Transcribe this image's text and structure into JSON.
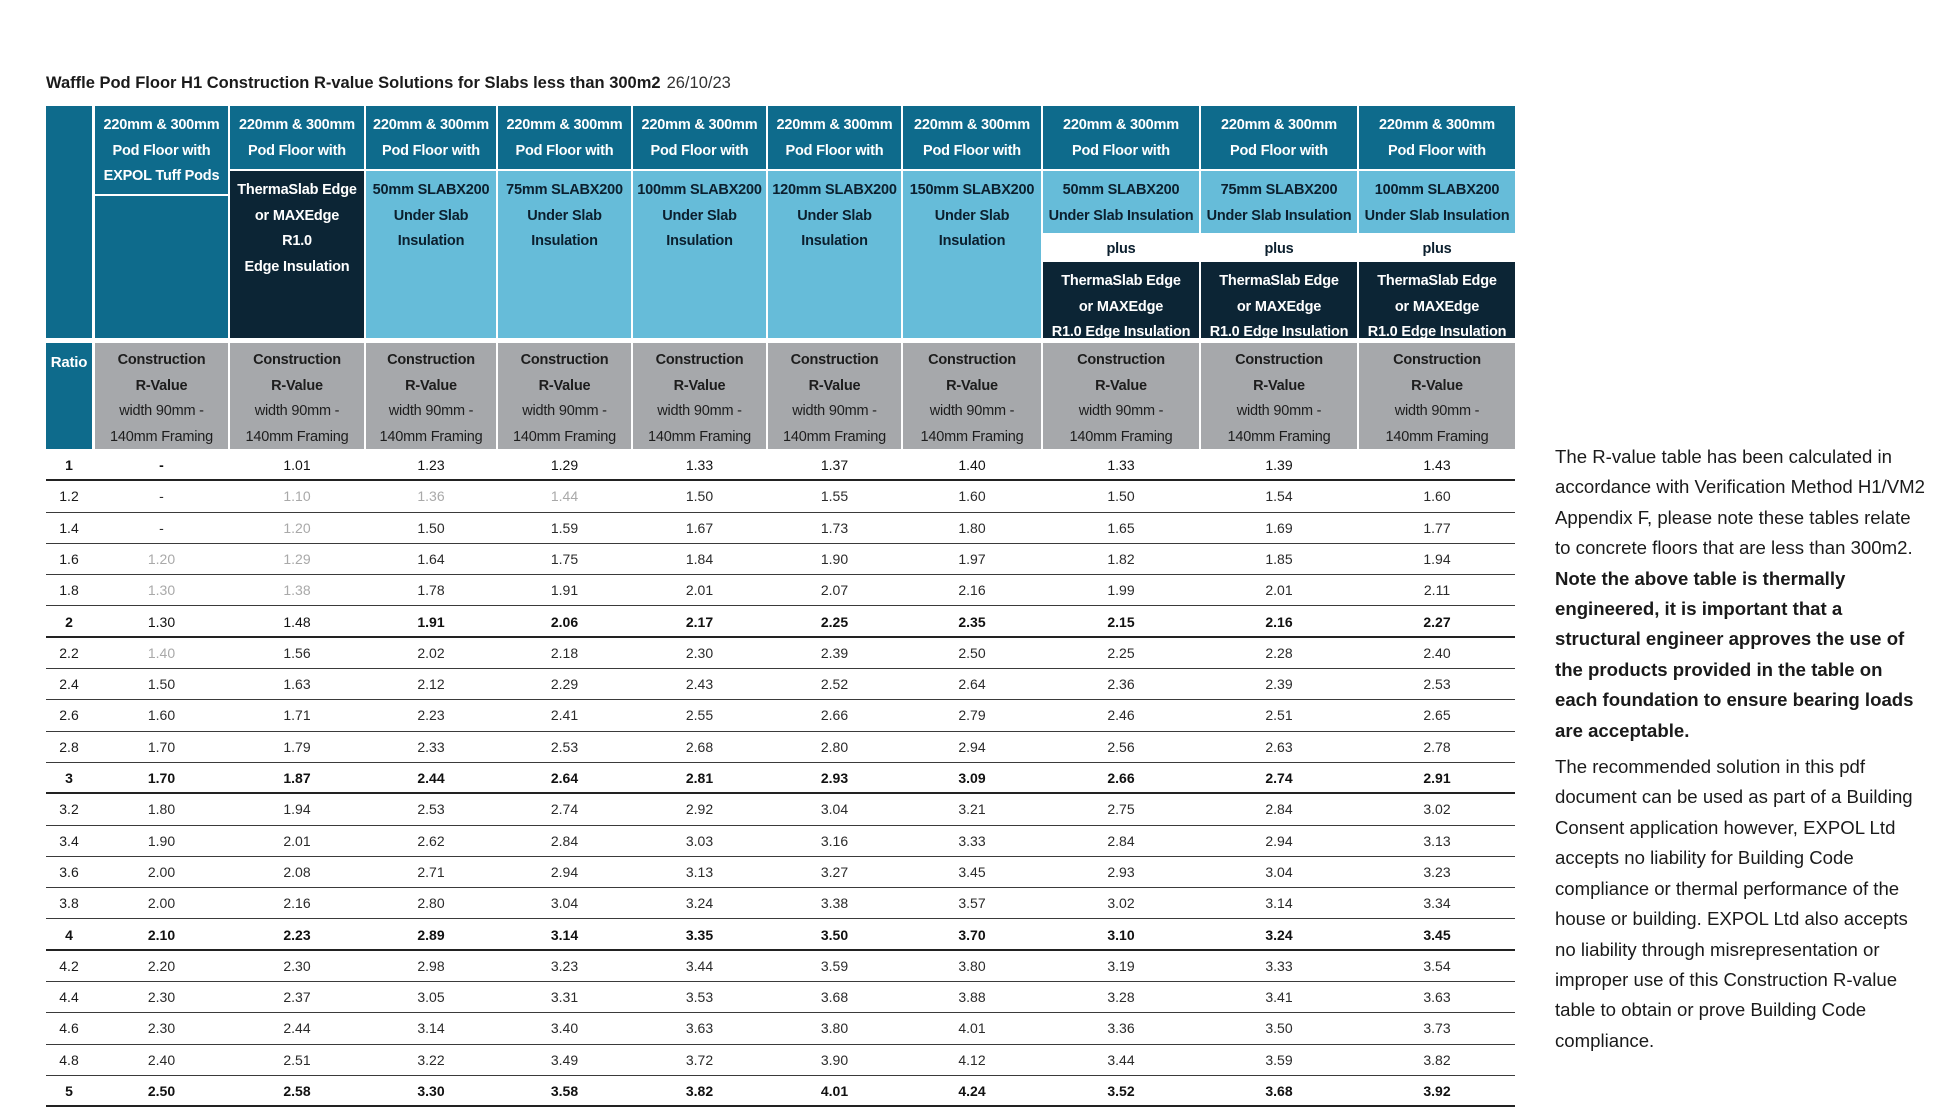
{
  "doc": {
    "title": "Waffle Pod Floor H1 Construction R-value Solutions for Slabs less than 300m2",
    "date": "26/10/23"
  },
  "table": {
    "ratio_label": "Ratio",
    "top_lines": [
      "220mm & 300mm",
      "Pod Floor with"
    ],
    "col1_extra": "EXPOL Tuff Pods",
    "thermaslab_only": [
      "ThermaSlab Edge",
      "or MAXEdge",
      "R1.0",
      "Edge Insulation"
    ],
    "underslab": [
      [
        "50mm SLABX200",
        "Under Slab",
        "Insulation"
      ],
      [
        "75mm SLABX200",
        "Under Slab",
        "Insulation"
      ],
      [
        "100mm SLABX200",
        "Under Slab",
        "Insulation"
      ],
      [
        "120mm SLABX200",
        "Under Slab",
        "Insulation"
      ],
      [
        "150mm SLABX200",
        "Under Slab",
        "Insulation"
      ]
    ],
    "combo_underslab": [
      [
        "50mm SLABX200",
        "Under Slab Insulation"
      ],
      [
        "75mm SLABX200",
        "Under Slab Insulation"
      ],
      [
        "100mm SLABX200",
        "Under Slab Insulation"
      ]
    ],
    "plus_label": "plus",
    "combo_edge": [
      "ThermaSlab Edge",
      "or MAXEdge",
      "R1.0 Edge Insulation"
    ],
    "sub_header": [
      "Construction",
      "R-Value",
      "width 90mm -",
      "140mm Framing"
    ],
    "rows": [
      {
        "ratio": "1",
        "bold": true,
        "values": [
          "-",
          "1.01",
          "1.23",
          "1.29",
          "1.33",
          "1.37",
          "1.40",
          "1.33",
          "1.39",
          "1.43"
        ],
        "faded": [
          1,
          2,
          3,
          4,
          5,
          6,
          7,
          8,
          9
        ]
      },
      {
        "ratio": "1.2",
        "bold": false,
        "values": [
          "-",
          "1.10",
          "1.36",
          "1.44",
          "1.50",
          "1.55",
          "1.60",
          "1.50",
          "1.54",
          "1.60"
        ],
        "faded": [
          1,
          2,
          3
        ]
      },
      {
        "ratio": "1.4",
        "bold": false,
        "values": [
          "-",
          "1.20",
          "1.50",
          "1.59",
          "1.67",
          "1.73",
          "1.80",
          "1.65",
          "1.69",
          "1.77"
        ],
        "faded": [
          1
        ]
      },
      {
        "ratio": "1.6",
        "bold": false,
        "values": [
          "1.20",
          "1.29",
          "1.64",
          "1.75",
          "1.84",
          "1.90",
          "1.97",
          "1.82",
          "1.85",
          "1.94"
        ],
        "faded": [
          0,
          1
        ]
      },
      {
        "ratio": "1.8",
        "bold": false,
        "values": [
          "1.30",
          "1.38",
          "1.78",
          "1.91",
          "2.01",
          "2.07",
          "2.16",
          "1.99",
          "2.01",
          "2.11"
        ],
        "faded": [
          0,
          1
        ]
      },
      {
        "ratio": "2",
        "bold": true,
        "values": [
          "1.30",
          "1.48",
          "1.91",
          "2.06",
          "2.17",
          "2.25",
          "2.35",
          "2.15",
          "2.16",
          "2.27"
        ],
        "faded": [
          0,
          1
        ]
      },
      {
        "ratio": "2.2",
        "bold": false,
        "values": [
          "1.40",
          "1.56",
          "2.02",
          "2.18",
          "2.30",
          "2.39",
          "2.50",
          "2.25",
          "2.28",
          "2.40"
        ],
        "faded": [
          0
        ]
      },
      {
        "ratio": "2.4",
        "bold": false,
        "values": [
          "1.50",
          "1.63",
          "2.12",
          "2.29",
          "2.43",
          "2.52",
          "2.64",
          "2.36",
          "2.39",
          "2.53"
        ],
        "faded": []
      },
      {
        "ratio": "2.6",
        "bold": false,
        "values": [
          "1.60",
          "1.71",
          "2.23",
          "2.41",
          "2.55",
          "2.66",
          "2.79",
          "2.46",
          "2.51",
          "2.65"
        ],
        "faded": []
      },
      {
        "ratio": "2.8",
        "bold": false,
        "values": [
          "1.70",
          "1.79",
          "2.33",
          "2.53",
          "2.68",
          "2.80",
          "2.94",
          "2.56",
          "2.63",
          "2.78"
        ],
        "faded": []
      },
      {
        "ratio": "3",
        "bold": true,
        "values": [
          "1.70",
          "1.87",
          "2.44",
          "2.64",
          "2.81",
          "2.93",
          "3.09",
          "2.66",
          "2.74",
          "2.91"
        ],
        "faded": []
      },
      {
        "ratio": "3.2",
        "bold": false,
        "values": [
          "1.80",
          "1.94",
          "2.53",
          "2.74",
          "2.92",
          "3.04",
          "3.21",
          "2.75",
          "2.84",
          "3.02"
        ],
        "faded": []
      },
      {
        "ratio": "3.4",
        "bold": false,
        "values": [
          "1.90",
          "2.01",
          "2.62",
          "2.84",
          "3.03",
          "3.16",
          "3.33",
          "2.84",
          "2.94",
          "3.13"
        ],
        "faded": []
      },
      {
        "ratio": "3.6",
        "bold": false,
        "values": [
          "2.00",
          "2.08",
          "2.71",
          "2.94",
          "3.13",
          "3.27",
          "3.45",
          "2.93",
          "3.04",
          "3.23"
        ],
        "faded": []
      },
      {
        "ratio": "3.8",
        "bold": false,
        "values": [
          "2.00",
          "2.16",
          "2.80",
          "3.04",
          "3.24",
          "3.38",
          "3.57",
          "3.02",
          "3.14",
          "3.34"
        ],
        "faded": []
      },
      {
        "ratio": "4",
        "bold": true,
        "values": [
          "2.10",
          "2.23",
          "2.89",
          "3.14",
          "3.35",
          "3.50",
          "3.70",
          "3.10",
          "3.24",
          "3.45"
        ],
        "faded": []
      },
      {
        "ratio": "4.2",
        "bold": false,
        "values": [
          "2.20",
          "2.30",
          "2.98",
          "3.23",
          "3.44",
          "3.59",
          "3.80",
          "3.19",
          "3.33",
          "3.54"
        ],
        "faded": []
      },
      {
        "ratio": "4.4",
        "bold": false,
        "values": [
          "2.30",
          "2.37",
          "3.05",
          "3.31",
          "3.53",
          "3.68",
          "3.88",
          "3.28",
          "3.41",
          "3.63"
        ],
        "faded": []
      },
      {
        "ratio": "4.6",
        "bold": false,
        "values": [
          "2.30",
          "2.44",
          "3.14",
          "3.40",
          "3.63",
          "3.80",
          "4.01",
          "3.36",
          "3.50",
          "3.73"
        ],
        "faded": []
      },
      {
        "ratio": "4.8",
        "bold": false,
        "values": [
          "2.40",
          "2.51",
          "3.22",
          "3.49",
          "3.72",
          "3.90",
          "4.12",
          "3.44",
          "3.59",
          "3.82"
        ],
        "faded": []
      },
      {
        "ratio": "5",
        "bold": true,
        "values": [
          "2.50",
          "2.58",
          "3.30",
          "3.58",
          "3.82",
          "4.01",
          "4.24",
          "3.52",
          "3.68",
          "3.92"
        ],
        "faded": []
      }
    ]
  },
  "note": {
    "p1_text": "The R-value table has been calculated in accordance with Verification Method H1/VM2 Appendix F, please note these tables relate to concrete floors that are less than 300m2. ",
    "p1_bold": "Note the above table is thermally engineered, it is important that a structural engineer approves the use of the products provided in the table on each foundation to ensure bearing loads are acceptable.",
    "p2": "The recommended solution in this pdf document can be used as part of a Building Consent application however, EXPOL Ltd accepts no liability for Building Code compliance or thermal performance of the house or building. EXPOL Ltd also accepts no liability through misrepresentation or improper use of this Construction R-value table to obtain or prove Building Code compliance."
  }
}
